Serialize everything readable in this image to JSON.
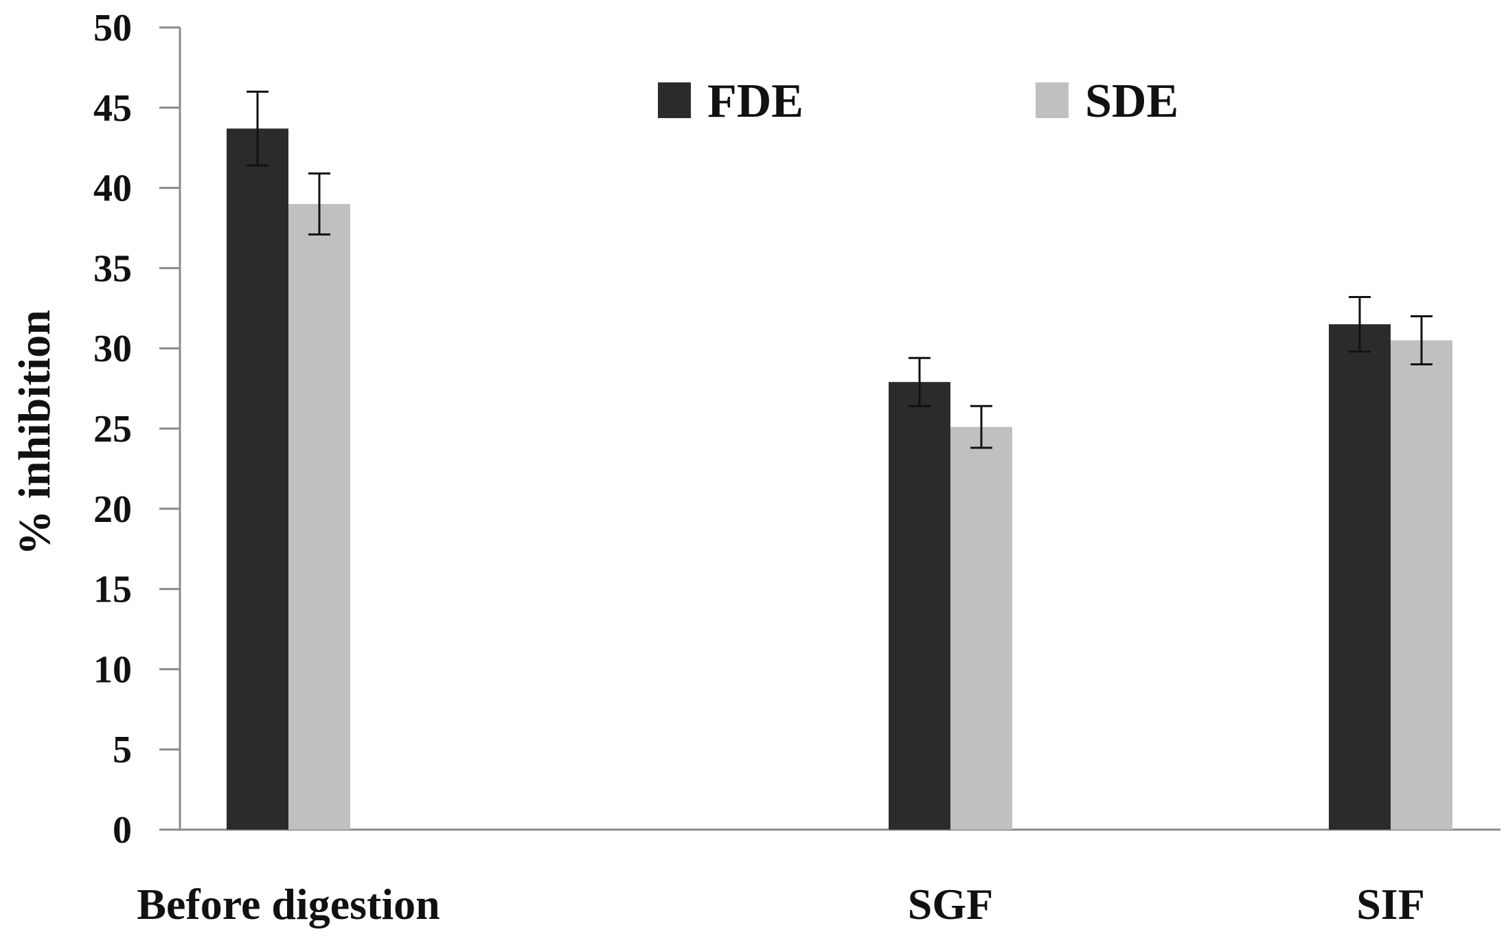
{
  "chart_data": {
    "type": "bar",
    "title": "",
    "xlabel": "",
    "ylabel": "% inhibition",
    "ylim": [
      0,
      50
    ],
    "yticks": [
      "0",
      "5",
      "10",
      "15",
      "20",
      "25",
      "30",
      "35",
      "40",
      "45",
      "50"
    ],
    "categories": [
      "Before digestion",
      "SGF",
      "SIF"
    ],
    "series": [
      {
        "name": "FDE",
        "color": "#2b2b2b",
        "values": [
          43.7,
          27.9,
          31.5
        ],
        "errors": [
          2.3,
          1.5,
          1.7
        ]
      },
      {
        "name": "SDE",
        "color": "#c0c0c0",
        "values": [
          39.0,
          25.1,
          30.5
        ],
        "errors": [
          1.9,
          1.3,
          1.5
        ]
      }
    ],
    "legend": {
      "placement": "top-center"
    },
    "grid": false
  }
}
